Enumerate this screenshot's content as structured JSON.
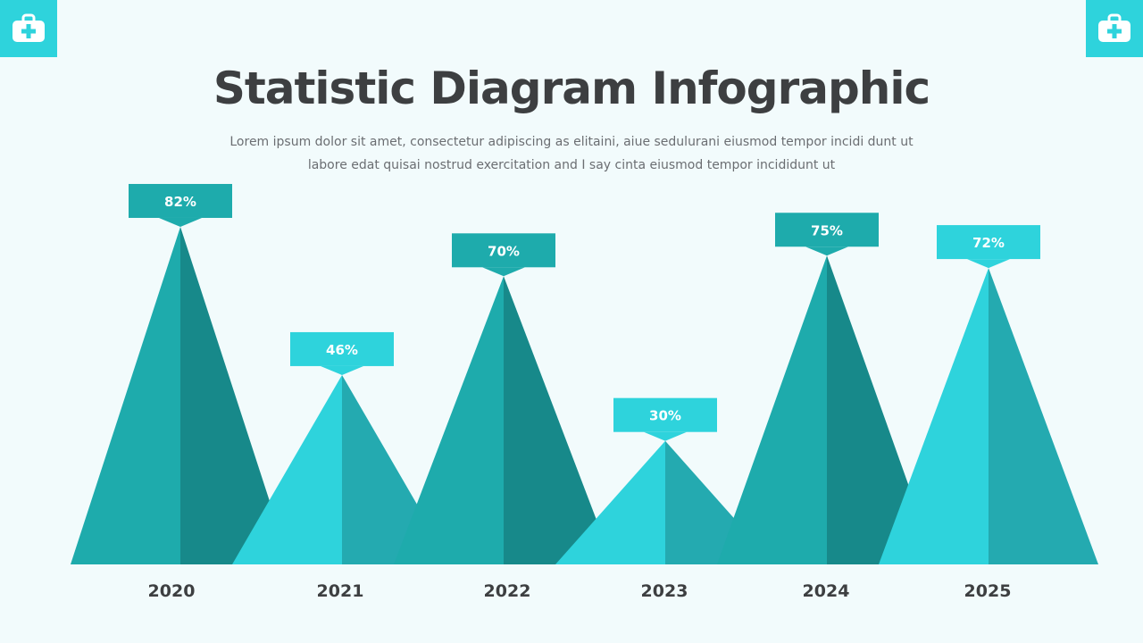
{
  "header": {
    "title": "Statistic Diagram Infographic",
    "subtitle_line1": "Lorem ipsum dolor sit amet, consectetur adipiscing as elitaini, aiue sedulurani eiusmod tempor incidi dunt ut",
    "subtitle_line2": "labore edat quisai nostrud exercitation and I say cinta eiusmod tempor incididunt ut"
  },
  "icons": {
    "left": "first-aid-kit-icon",
    "right": "first-aid-kit-icon"
  },
  "colors": {
    "background": "#f2fbfc",
    "accent_light": "#2ed3dc",
    "accent_dark": "#1eabac",
    "text_dark": "#3d3f41"
  },
  "chart_data": {
    "type": "bar",
    "title": "Statistic Diagram Infographic",
    "categories": [
      "2020",
      "2021",
      "2022",
      "2023",
      "2024",
      "2025"
    ],
    "values": [
      82,
      46,
      70,
      30,
      75,
      72
    ],
    "value_labels": [
      "82%",
      "46%",
      "70%",
      "30%",
      "75%",
      "72%"
    ],
    "variants": [
      "dark",
      "light",
      "dark",
      "light",
      "dark",
      "light"
    ],
    "unit": "%",
    "ylim": [
      0,
      100
    ]
  }
}
